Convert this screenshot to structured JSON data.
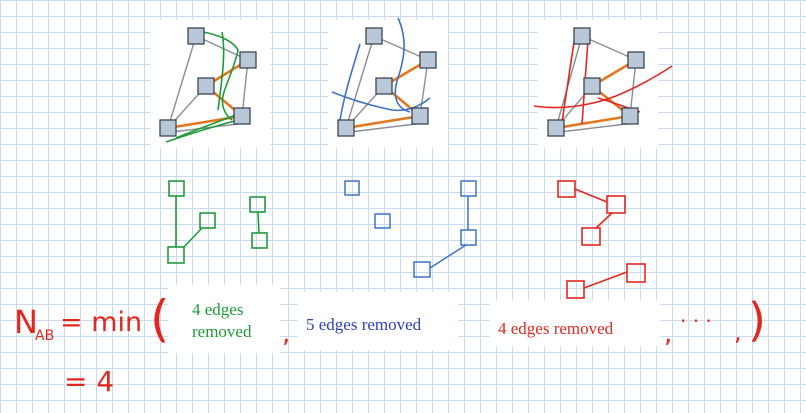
{
  "colors": {
    "grid": "#c9dcef",
    "node_fill": "#b9c8d8",
    "node_stroke": "#3b4652",
    "path_orange": "#e4781e",
    "edge_gray": "#8a8f96",
    "green": "#1f9a3a",
    "blue": "#3f73c8",
    "red": "#e0281f"
  },
  "labels": {
    "green": {
      "line1": "4 edges",
      "line2": "removed"
    },
    "blue": "5 edges removed",
    "red": "4 edges removed"
  },
  "equation": {
    "lhs": "N",
    "subscript": "AB",
    "op": "= min",
    "ellipsis": "· · ·",
    "result": "= 4"
  }
}
